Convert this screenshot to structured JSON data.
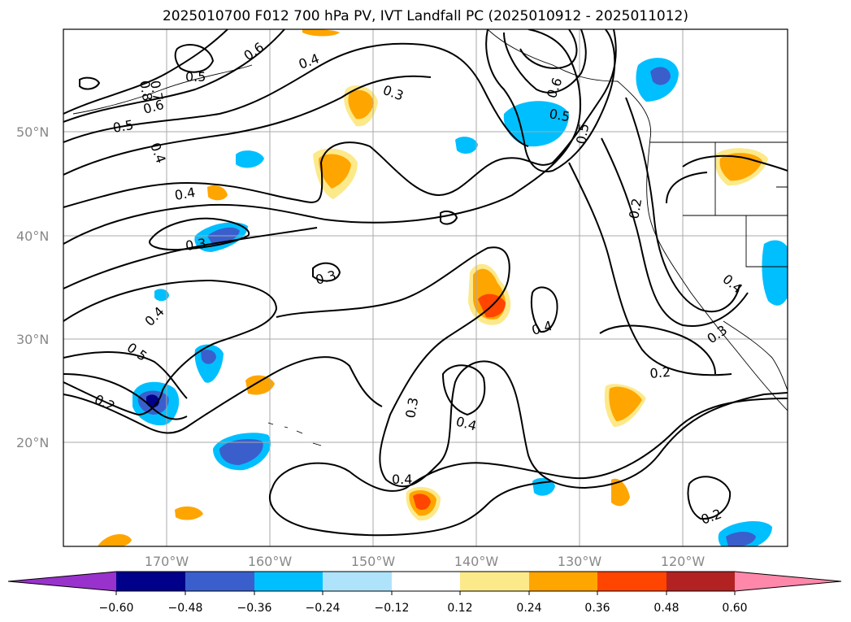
{
  "title": "2025010700 F012 700 hPa PV, IVT Landfall PC (2025010912 - 2025011012)",
  "map": {
    "lat_labels": [
      "50°N",
      "40°N",
      "30°N",
      "20°N"
    ],
    "lon_labels": [
      "170°W",
      "160°W",
      "150°W",
      "140°W",
      "130°W",
      "120°W"
    ],
    "contour_labels": [
      "0.8",
      "0.7",
      "0.5",
      "0.6",
      "0.4",
      "0.6",
      "0.5",
      "0.4",
      "0.3",
      "0.4",
      "0.3",
      "0.3",
      "0.4",
      "0.5",
      "0.2",
      "0.3",
      "0.4",
      "0.4",
      "0.4",
      "0.2",
      "0.2",
      "0.3",
      "0.4",
      "0.2",
      "0.5",
      "0.6",
      "0.5"
    ]
  },
  "colorbar": {
    "ticks": [
      "−0.60",
      "−0.48",
      "−0.36",
      "−0.24",
      "−0.12",
      "0.12",
      "0.24",
      "0.36",
      "0.48",
      "0.60"
    ],
    "colors": [
      "#9932cc",
      "#00008b",
      "#3a5fcd",
      "#00bfff",
      "#aee3fb",
      "#ffffff",
      "#fce98a",
      "#ffa500",
      "#ff4500",
      "#b22222",
      "#ff88aa"
    ]
  }
}
